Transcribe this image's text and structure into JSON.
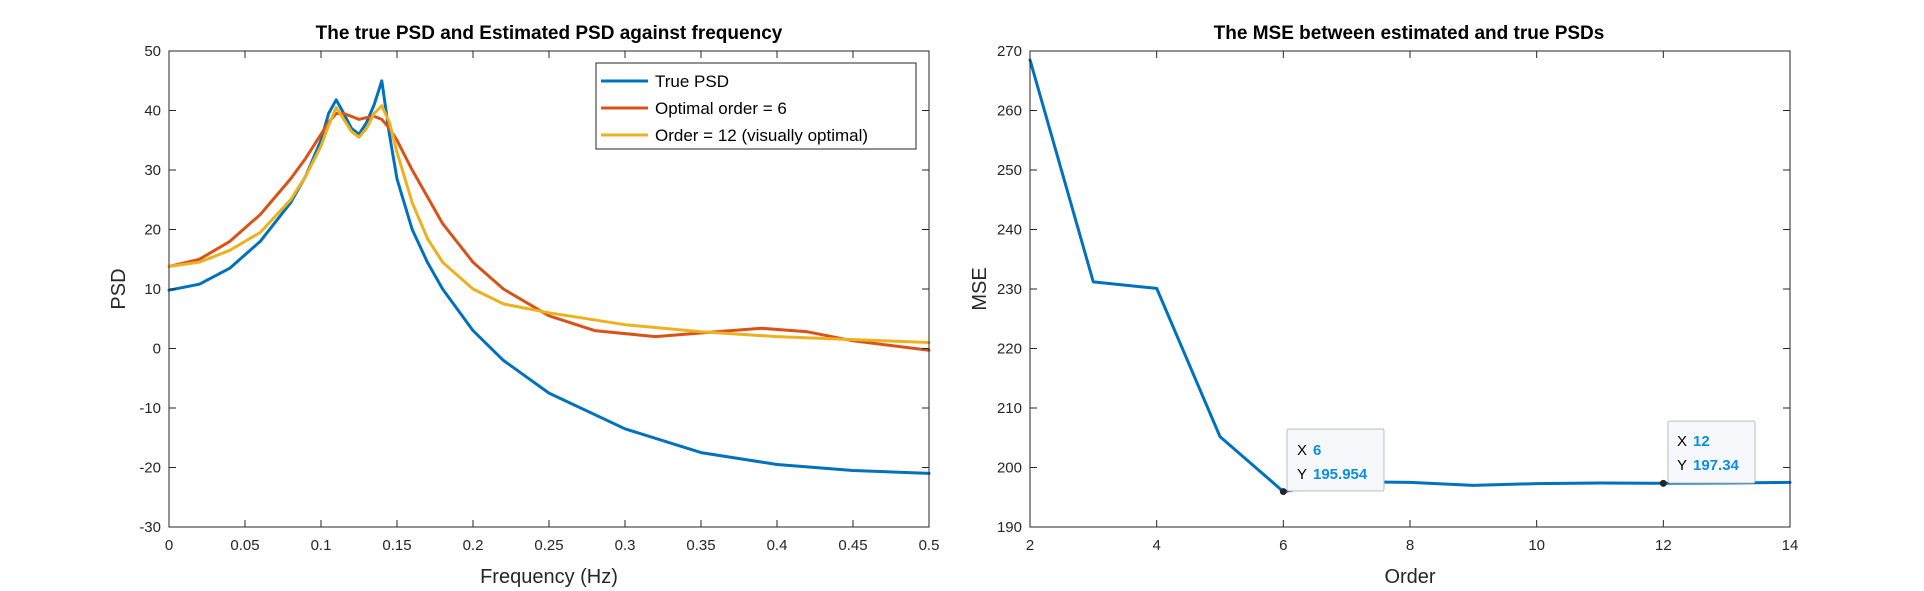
{
  "colors": {
    "true_psd": "#0072BD",
    "order6": "#D95319",
    "order12": "#EDB120",
    "mse": "#0072BD",
    "datatip_value": "#0b8de0"
  },
  "chart_data": [
    {
      "type": "line",
      "title": "The true PSD and Estimated PSD against frequency",
      "xlabel": "Frequency (Hz)",
      "ylabel": "PSD",
      "xlim": [
        0,
        0.5
      ],
      "ylim": [
        -30,
        50
      ],
      "xticks": [
        0,
        0.05,
        0.1,
        0.15,
        0.2,
        0.25,
        0.3,
        0.35,
        0.4,
        0.45,
        0.5
      ],
      "xtick_labels": [
        "0",
        "0.05",
        "0.1",
        "0.15",
        "0.2",
        "0.25",
        "0.3",
        "0.35",
        "0.4",
        "0.45",
        "0.5"
      ],
      "yticks": [
        -30,
        -20,
        -10,
        0,
        10,
        20,
        30,
        40,
        50
      ],
      "ytick_labels": [
        "-30",
        "-20",
        "-10",
        "0",
        "10",
        "20",
        "30",
        "40",
        "50"
      ],
      "grid": false,
      "legend": "top-right",
      "series": [
        {
          "name": "True PSD",
          "color": "#0072BD",
          "x": [
            0,
            0.02,
            0.04,
            0.06,
            0.08,
            0.09,
            0.1,
            0.105,
            0.11,
            0.115,
            0.12,
            0.125,
            0.13,
            0.135,
            0.14,
            0.145,
            0.15,
            0.16,
            0.17,
            0.18,
            0.2,
            0.22,
            0.25,
            0.3,
            0.35,
            0.4,
            0.45,
            0.5
          ],
          "y": [
            9.8,
            10.8,
            13.5,
            18,
            24.5,
            29,
            35,
            39.5,
            41.8,
            39.5,
            37,
            36,
            38,
            41,
            45,
            36,
            28.5,
            20,
            14.5,
            10,
            3,
            -2,
            -7.5,
            -13.5,
            -17.5,
            -19.5,
            -20.5,
            -21
          ]
        },
        {
          "name": "Optimal order = 6",
          "color": "#D95319",
          "x": [
            0,
            0.02,
            0.04,
            0.06,
            0.08,
            0.09,
            0.1,
            0.105,
            0.11,
            0.115,
            0.12,
            0.125,
            0.13,
            0.135,
            0.14,
            0.145,
            0.15,
            0.16,
            0.17,
            0.18,
            0.2,
            0.22,
            0.25,
            0.28,
            0.32,
            0.36,
            0.39,
            0.42,
            0.45,
            0.5
          ],
          "y": [
            13.8,
            15,
            18,
            22.5,
            28.5,
            32,
            36,
            38,
            39.5,
            39.5,
            39,
            38.5,
            38.8,
            39,
            38.5,
            37,
            35,
            30,
            25.5,
            21,
            14.5,
            10,
            5.5,
            3,
            2,
            2.8,
            3.4,
            2.8,
            1.3,
            -0.3
          ]
        },
        {
          "name": "Order = 12 (visually optimal)",
          "color": "#EDB120",
          "x": [
            0,
            0.02,
            0.04,
            0.06,
            0.08,
            0.09,
            0.1,
            0.105,
            0.11,
            0.115,
            0.12,
            0.125,
            0.13,
            0.135,
            0.14,
            0.145,
            0.15,
            0.16,
            0.17,
            0.18,
            0.2,
            0.22,
            0.25,
            0.3,
            0.35,
            0.4,
            0.45,
            0.5
          ],
          "y": [
            13.8,
            14.5,
            16.5,
            19.5,
            25,
            29,
            34,
            37.5,
            40.5,
            38.5,
            36.5,
            35.5,
            37,
            39.5,
            40.8,
            38,
            33,
            24.5,
            18.5,
            14.5,
            10,
            7.5,
            6,
            4,
            2.8,
            2,
            1.5,
            1
          ]
        }
      ]
    },
    {
      "type": "line",
      "title": "The MSE between estimated and true PSDs",
      "xlabel": "Order",
      "ylabel": "MSE",
      "xlim": [
        2,
        14
      ],
      "ylim": [
        190,
        270
      ],
      "xticks": [
        2,
        4,
        6,
        8,
        10,
        12,
        14
      ],
      "xtick_labels": [
        "2",
        "4",
        "6",
        "8",
        "10",
        "12",
        "14"
      ],
      "yticks": [
        190,
        200,
        210,
        220,
        230,
        240,
        250,
        260,
        270
      ],
      "ytick_labels": [
        "190",
        "200",
        "210",
        "220",
        "230",
        "240",
        "250",
        "260",
        "270"
      ],
      "grid": false,
      "series": [
        {
          "color": "#0072BD",
          "x": [
            2,
            3,
            4,
            5,
            6,
            7,
            8,
            9,
            10,
            11,
            12,
            13,
            14
          ],
          "y": [
            268.5,
            231.2,
            230.1,
            205.2,
            195.954,
            197.6,
            197.5,
            197,
            197.3,
            197.4,
            197.34,
            197.4,
            197.5
          ]
        }
      ],
      "datatips": [
        {
          "x": 6,
          "y": 195.954,
          "x_label": "X",
          "y_label": "Y",
          "x_text": "6",
          "y_text": "195.954"
        },
        {
          "x": 12,
          "y": 197.34,
          "x_label": "X",
          "y_label": "Y",
          "x_text": "12",
          "y_text": "197.34"
        }
      ]
    }
  ]
}
